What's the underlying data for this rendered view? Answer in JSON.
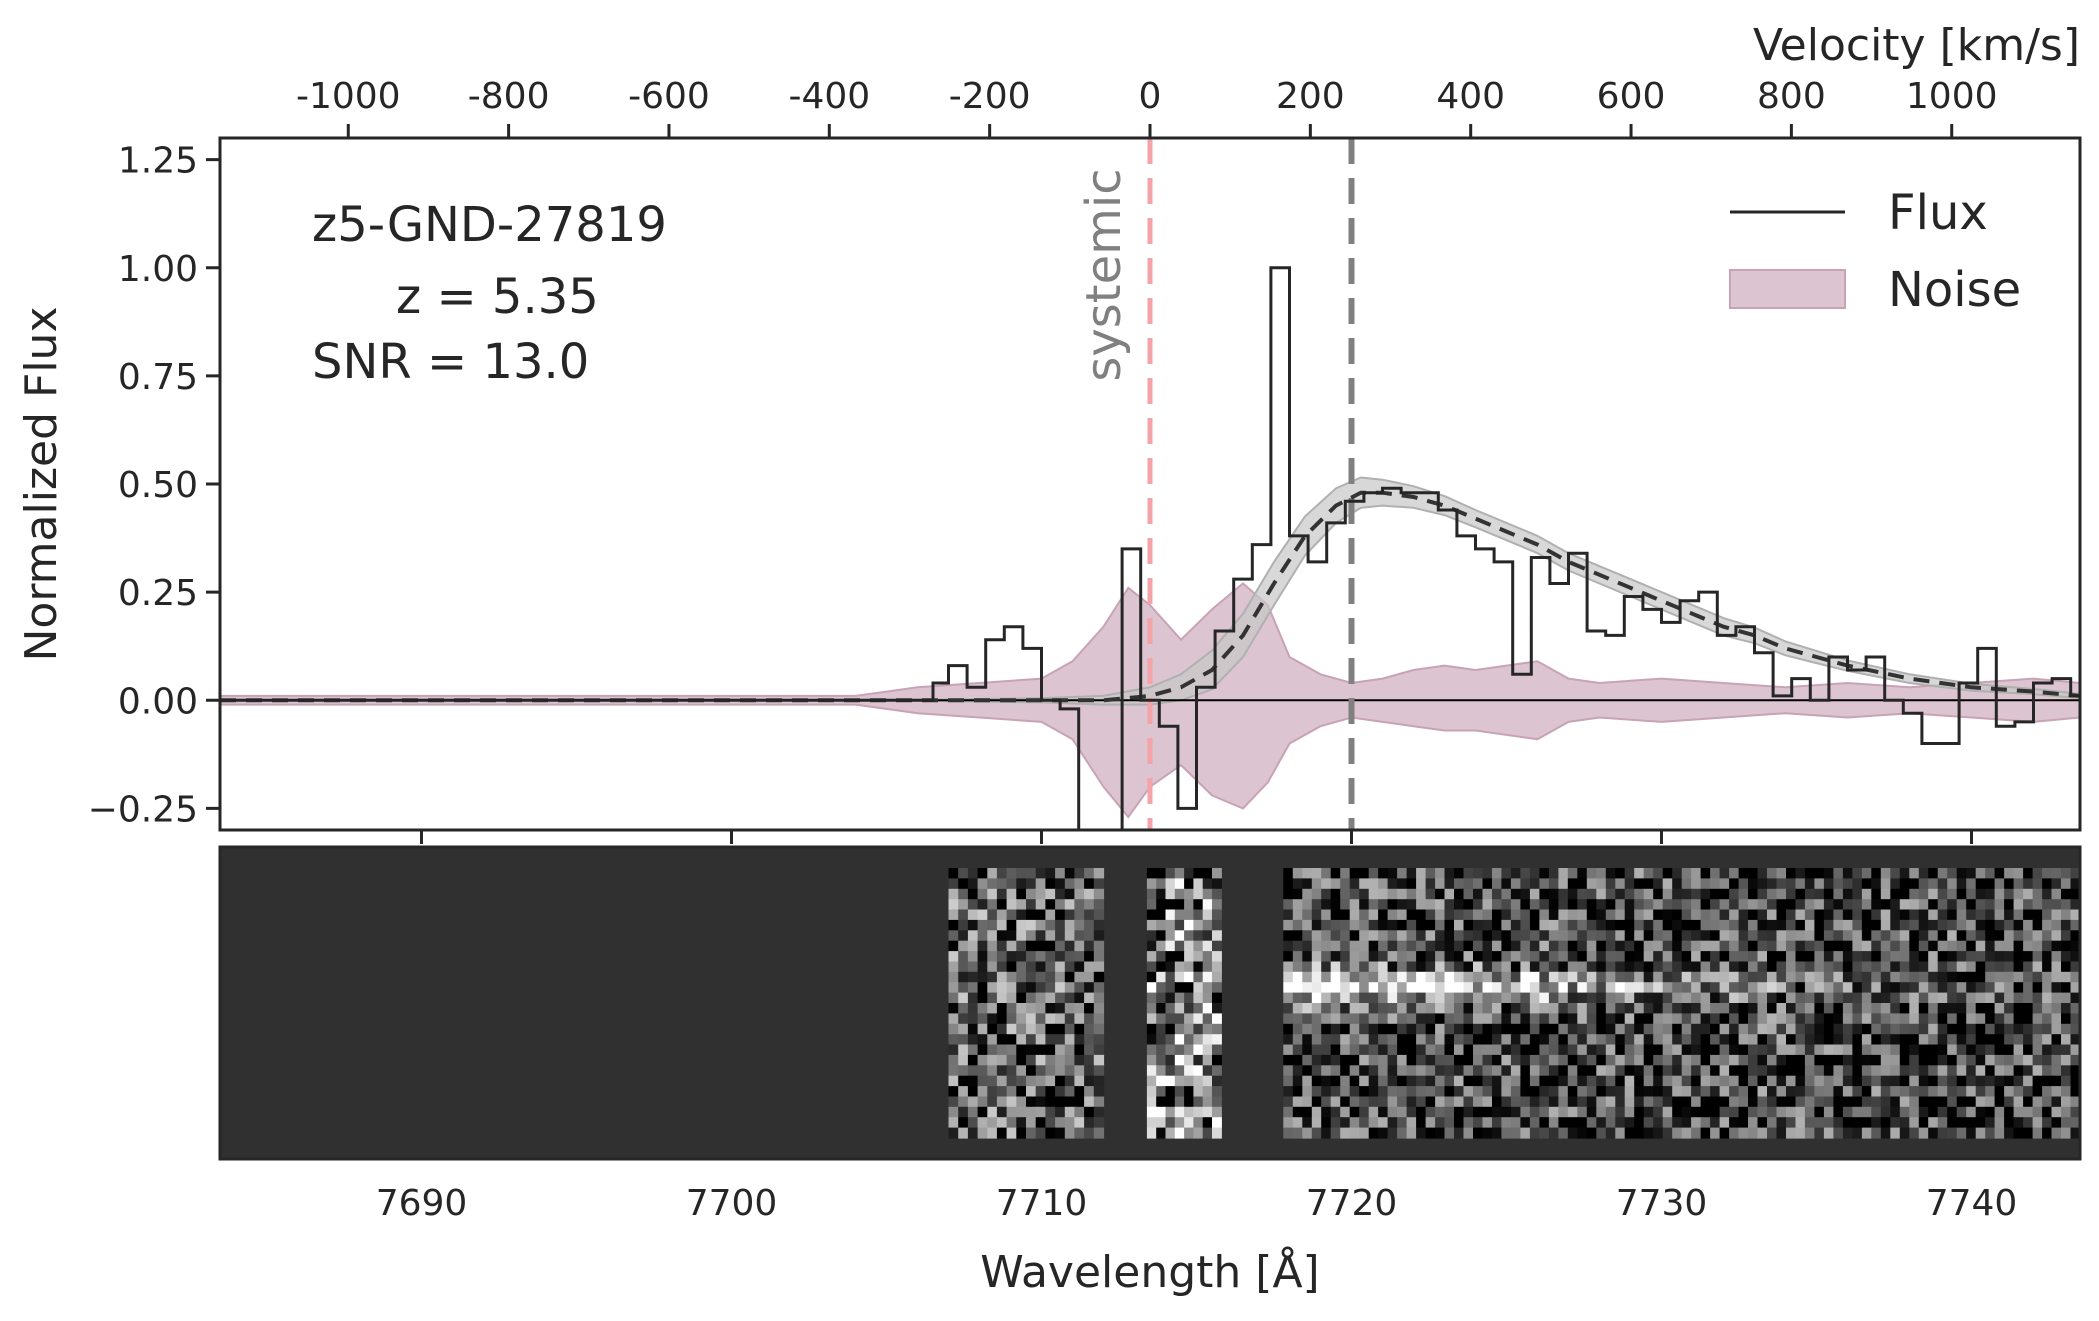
{
  "chart_data": {
    "type": "line",
    "panels": [
      "spectrum-1d",
      "spectrum-2d"
    ],
    "xlabel": "Wavelength [Å]",
    "ylabel": "Normalized Flux",
    "top_xlabel": "Velocity [km/s]",
    "xlim": [
      7683.5,
      7743.5
    ],
    "ylim": [
      -0.3,
      1.3
    ],
    "velocity_lim": [
      -1160,
      1160
    ],
    "x_ticks": [
      7690,
      7700,
      7710,
      7720,
      7730,
      7740
    ],
    "x_tick_labels": [
      "7690",
      "7700",
      "7710",
      "7720",
      "7730",
      "7740"
    ],
    "y_ticks": [
      -0.25,
      0.0,
      0.25,
      0.5,
      0.75,
      1.0,
      1.25
    ],
    "y_tick_labels": [
      "−0.25",
      "0.00",
      "0.25",
      "0.50",
      "0.75",
      "1.00",
      "1.25"
    ],
    "velocity_ticks": [
      -1000,
      -800,
      -600,
      -400,
      -200,
      0,
      200,
      400,
      600,
      800,
      1000
    ],
    "velocity_tick_labels": [
      "-1000",
      "-800",
      "-600",
      "-400",
      "-200",
      "0",
      "200",
      "400",
      "600",
      "800",
      "1000"
    ],
    "annotations": {
      "object": "z5-GND-27819",
      "redshift": "z = 5.35",
      "snr": "SNR = 13.0",
      "systemic_label": "systemic"
    },
    "systemic_wavelength": 7713.5,
    "peak_wavelength": 7720.0,
    "legend": {
      "placement": "top-right",
      "flux": "Flux",
      "noise": "Noise"
    },
    "colors": {
      "flux": "#262626",
      "noise_fill": "#dcc5d0",
      "noise_edge": "#c7a3b5",
      "systemic_line": "#f4a3a8",
      "peak_line": "#808080",
      "model_band": "#c8c8c8",
      "model_line": "#333333",
      "image_background": "#303030"
    },
    "flux_series": {
      "name": "Flux",
      "start_wavelength": 7683.5,
      "pre_step_value": 0.0,
      "steps": [
        [
          7706.5,
          0.04
        ],
        [
          7707.0,
          0.08
        ],
        [
          7707.6,
          0.03
        ],
        [
          7708.2,
          0.14
        ],
        [
          7708.8,
          0.17
        ],
        [
          7709.4,
          0.12
        ],
        [
          7710.0,
          0.0
        ],
        [
          7710.6,
          -0.02
        ],
        [
          7711.2,
          -0.35
        ],
        [
          7712.6,
          0.35
        ],
        [
          7713.2,
          0.0
        ],
        [
          7713.8,
          -0.06
        ],
        [
          7714.4,
          -0.25
        ],
        [
          7715.0,
          0.03
        ],
        [
          7715.6,
          0.16
        ],
        [
          7716.2,
          0.28
        ],
        [
          7716.8,
          0.36
        ],
        [
          7717.4,
          1.0
        ],
        [
          7718.0,
          0.38
        ],
        [
          7718.6,
          0.32
        ],
        [
          7719.2,
          0.41
        ],
        [
          7719.8,
          0.46
        ],
        [
          7720.4,
          0.48
        ],
        [
          7721.0,
          0.49
        ],
        [
          7721.6,
          0.48
        ],
        [
          7722.2,
          0.48
        ],
        [
          7722.8,
          0.44
        ],
        [
          7723.4,
          0.38
        ],
        [
          7724.0,
          0.35
        ],
        [
          7724.6,
          0.32
        ],
        [
          7725.2,
          0.06
        ],
        [
          7725.8,
          0.33
        ],
        [
          7726.4,
          0.27
        ],
        [
          7727.0,
          0.34
        ],
        [
          7727.6,
          0.16
        ],
        [
          7728.2,
          0.15
        ],
        [
          7728.8,
          0.24
        ],
        [
          7729.4,
          0.21
        ],
        [
          7730.0,
          0.18
        ],
        [
          7730.6,
          0.23
        ],
        [
          7731.2,
          0.25
        ],
        [
          7731.8,
          0.15
        ],
        [
          7732.4,
          0.17
        ],
        [
          7733.0,
          0.11
        ],
        [
          7733.6,
          0.01
        ],
        [
          7734.2,
          0.05
        ],
        [
          7734.8,
          0.0
        ],
        [
          7735.4,
          0.1
        ],
        [
          7736.0,
          0.07
        ],
        [
          7736.6,
          0.1
        ],
        [
          7737.2,
          0.0
        ],
        [
          7737.8,
          -0.03
        ],
        [
          7738.4,
          -0.1
        ],
        [
          7739.6,
          0.04
        ],
        [
          7740.2,
          0.12
        ],
        [
          7740.8,
          -0.06
        ],
        [
          7741.4,
          -0.05
        ],
        [
          7742.0,
          0.04
        ],
        [
          7742.6,
          0.05
        ],
        [
          7743.2,
          0.01
        ]
      ]
    },
    "noise_series": {
      "name": "Noise",
      "wavelength": [
        7683.5,
        7704.0,
        7706.0,
        7708.0,
        7710.0,
        7711.0,
        7712.0,
        7712.8,
        7713.5,
        7714.5,
        7715.5,
        7716.5,
        7717.3,
        7718.0,
        7719.0,
        7720.0,
        7721.0,
        7722.0,
        7723.0,
        7724.0,
        7725.0,
        7726.0,
        7727.0,
        7728.0,
        7730.0,
        7732.0,
        7734.0,
        7736.0,
        7738.0,
        7740.0,
        7742.0,
        7743.5
      ],
      "upper": [
        0.01,
        0.01,
        0.03,
        0.04,
        0.05,
        0.09,
        0.17,
        0.26,
        0.22,
        0.14,
        0.21,
        0.27,
        0.22,
        0.1,
        0.06,
        0.04,
        0.05,
        0.07,
        0.08,
        0.07,
        0.08,
        0.09,
        0.05,
        0.04,
        0.05,
        0.04,
        0.03,
        0.04,
        0.03,
        0.04,
        0.05,
        0.04
      ],
      "lower": [
        -0.01,
        -0.01,
        -0.03,
        -0.04,
        -0.05,
        -0.09,
        -0.2,
        -0.27,
        -0.2,
        -0.15,
        -0.22,
        -0.25,
        -0.19,
        -0.1,
        -0.06,
        -0.04,
        -0.05,
        -0.06,
        -0.07,
        -0.07,
        -0.08,
        -0.09,
        -0.05,
        -0.04,
        -0.05,
        -0.04,
        -0.03,
        -0.04,
        -0.03,
        -0.04,
        -0.05,
        -0.04
      ]
    },
    "model_fit": {
      "wavelength": [
        7683.5,
        7705.0,
        7710.0,
        7712.0,
        7713.5,
        7714.5,
        7715.5,
        7716.5,
        7717.5,
        7718.5,
        7719.5,
        7720.3,
        7721.0,
        7722.0,
        7723.0,
        7724.0,
        7725.0,
        7726.0,
        7727.0,
        7728.0,
        7729.0,
        7730.0,
        7731.0,
        7732.0,
        7733.0,
        7734.0,
        7735.0,
        7736.0,
        7738.0,
        7740.0,
        7742.0,
        7743.5
      ],
      "flux": [
        0.0,
        0.0,
        0.0,
        0.0,
        0.01,
        0.03,
        0.07,
        0.15,
        0.27,
        0.38,
        0.45,
        0.48,
        0.48,
        0.47,
        0.45,
        0.42,
        0.39,
        0.36,
        0.32,
        0.29,
        0.26,
        0.23,
        0.2,
        0.17,
        0.15,
        0.12,
        0.1,
        0.08,
        0.05,
        0.03,
        0.02,
        0.01
      ],
      "band_half_width": [
        0.0,
        0.0,
        0.005,
        0.01,
        0.02,
        0.03,
        0.045,
        0.05,
        0.05,
        0.045,
        0.04,
        0.035,
        0.03,
        0.025,
        0.022,
        0.02,
        0.02,
        0.02,
        0.02,
        0.02,
        0.02,
        0.02,
        0.02,
        0.02,
        0.018,
        0.016,
        0.014,
        0.012,
        0.01,
        0.008,
        0.006,
        0.005
      ]
    },
    "image_strips": [
      {
        "wavelength_range": [
          7707.0,
          7712.0
        ],
        "rows": 26,
        "cols": 16,
        "seed": 11,
        "mean": 0.35,
        "spread": 0.45,
        "trace_strength": 0.0
      },
      {
        "wavelength_range": [
          7713.4,
          7715.8
        ],
        "rows": 26,
        "cols": 8,
        "seed": 23,
        "mean": 0.45,
        "spread": 0.6,
        "trace_strength": 0.0
      },
      {
        "wavelength_range": [
          7717.8,
          7743.5
        ],
        "rows": 26,
        "cols": 84,
        "seed": 37,
        "mean": 0.28,
        "spread": 0.42,
        "trace_strength": 0.75
      }
    ]
  }
}
